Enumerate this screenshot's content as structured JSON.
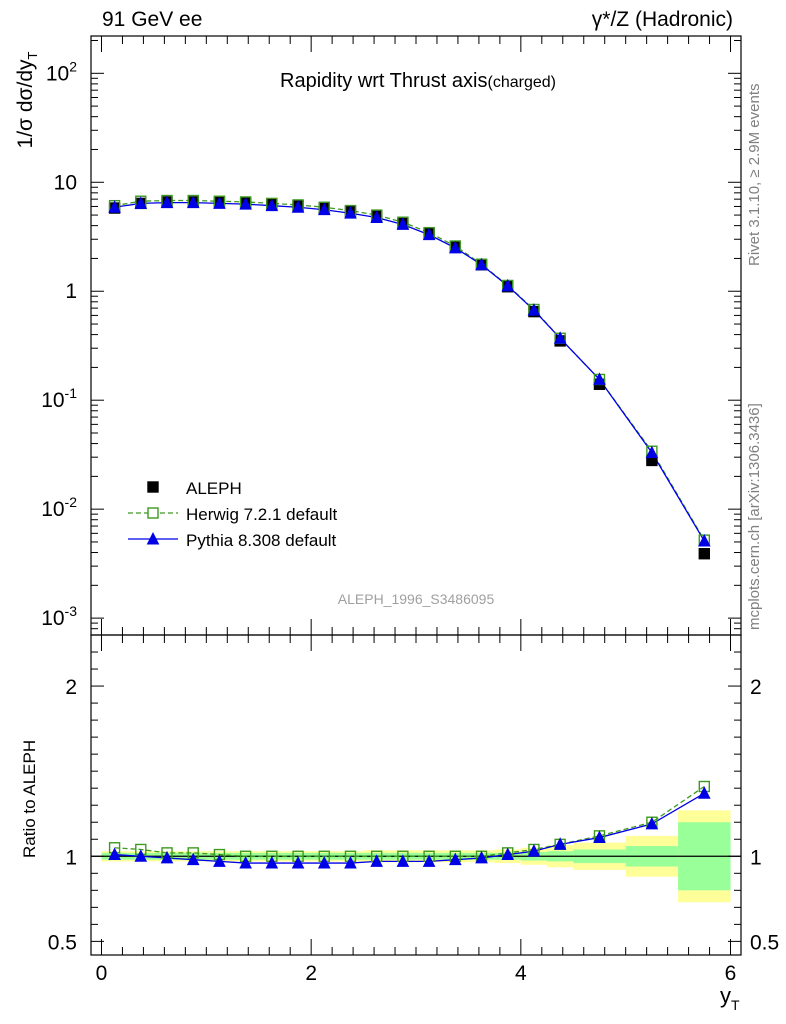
{
  "header": {
    "left": "91 GeV ee",
    "right": "γ*/Z (Hadronic)"
  },
  "side_text": {
    "rivet": "Rivet 3.1.10, ≥ 2.9M events",
    "mcplots": "mcplots.cern.ch [arXiv:1306.3436]"
  },
  "chart_data": [
    {
      "type": "scatter",
      "title": "Rapidity wrt Thrust axis",
      "title_suffix": "(charged)",
      "ylabel": "1/σ dσ/dy",
      "ylabel_sub": "T",
      "yscale": "log",
      "ylim": [
        0.0007,
        220
      ],
      "xlim": [
        -0.1,
        6.1
      ],
      "watermark": "ALEPH_1996_S3486095",
      "y_ticks": [
        {
          "base": "10",
          "exp": "-3"
        },
        {
          "base": "10",
          "exp": "-2"
        },
        {
          "base": "10",
          "exp": "-1"
        },
        {
          "base": "1",
          "exp": ""
        },
        {
          "base": "10",
          "exp": ""
        },
        {
          "base": "10",
          "exp": "2"
        }
      ],
      "legend_position": "lower-left",
      "x": [
        0.125,
        0.375,
        0.625,
        0.875,
        1.125,
        1.375,
        1.625,
        1.875,
        2.125,
        2.375,
        2.625,
        2.875,
        3.125,
        3.375,
        3.625,
        3.875,
        4.125,
        4.375,
        4.75,
        5.25,
        5.75
      ],
      "series": [
        {
          "name": "ALEPH",
          "style": "black-square",
          "values": [
            5.8,
            6.4,
            6.6,
            6.6,
            6.6,
            6.5,
            6.3,
            6.1,
            5.8,
            5.4,
            4.9,
            4.2,
            3.4,
            2.55,
            1.75,
            1.1,
            0.65,
            0.35,
            0.14,
            0.028,
            0.0039
          ]
        },
        {
          "name": "Herwig 7.2.1 default",
          "style": "green-dashed-open-square",
          "values": [
            6.1,
            6.7,
            6.8,
            6.8,
            6.7,
            6.6,
            6.4,
            6.2,
            5.9,
            5.5,
            5.0,
            4.3,
            3.45,
            2.6,
            1.77,
            1.13,
            0.68,
            0.37,
            0.155,
            0.034,
            0.0052
          ]
        },
        {
          "name": "Pythia 8.308 default",
          "style": "blue-solid-triangle",
          "values": [
            5.9,
            6.4,
            6.5,
            6.5,
            6.4,
            6.3,
            6.1,
            5.9,
            5.6,
            5.2,
            4.75,
            4.1,
            3.3,
            2.5,
            1.75,
            1.12,
            0.67,
            0.37,
            0.155,
            0.033,
            0.0051
          ]
        }
      ]
    },
    {
      "type": "scatter",
      "ylabel": "Ratio to ALEPH",
      "xlabel": "y",
      "xlabel_sub": "T",
      "ylim": [
        0.42,
        2.3
      ],
      "xlim": [
        -0.1,
        6.1
      ],
      "y_ticks": [
        "0.5",
        "1",
        "2"
      ],
      "x_ticks": [
        "0",
        "2",
        "4",
        "6"
      ],
      "bins": [
        [
          0,
          0.25
        ],
        [
          0.25,
          0.5
        ],
        [
          0.5,
          0.75
        ],
        [
          0.75,
          1
        ],
        [
          1,
          1.25
        ],
        [
          1.25,
          1.5
        ],
        [
          1.5,
          1.75
        ],
        [
          1.75,
          2
        ],
        [
          2,
          2.25
        ],
        [
          2.25,
          2.5
        ],
        [
          2.5,
          2.75
        ],
        [
          2.75,
          3
        ],
        [
          3,
          3.25
        ],
        [
          3.25,
          3.5
        ],
        [
          3.5,
          3.75
        ],
        [
          3.75,
          4
        ],
        [
          4,
          4.25
        ],
        [
          4.25,
          4.5
        ],
        [
          4.5,
          5
        ],
        [
          5,
          5.5
        ],
        [
          5.5,
          6
        ]
      ],
      "band_green": [
        0.02,
        0.02,
        0.02,
        0.02,
        0.02,
        0.02,
        0.02,
        0.02,
        0.02,
        0.02,
        0.02,
        0.02,
        0.02,
        0.02,
        0.02,
        0.02,
        0.025,
        0.03,
        0.04,
        0.06,
        0.2
      ],
      "band_yellow": [
        0.03,
        0.03,
        0.03,
        0.03,
        0.03,
        0.03,
        0.03,
        0.03,
        0.03,
        0.03,
        0.035,
        0.035,
        0.035,
        0.035,
        0.035,
        0.04,
        0.05,
        0.065,
        0.08,
        0.12,
        0.27
      ],
      "x": [
        0.125,
        0.375,
        0.625,
        0.875,
        1.125,
        1.375,
        1.625,
        1.875,
        2.125,
        2.375,
        2.625,
        2.875,
        3.125,
        3.375,
        3.625,
        3.875,
        4.125,
        4.375,
        4.75,
        5.25,
        5.75
      ],
      "series": [
        {
          "name": "Herwig 7.2.1 default",
          "style": "green-dashed-open-square",
          "values": [
            1.05,
            1.04,
            1.02,
            1.02,
            1.01,
            1.0,
            1.0,
            1.0,
            1.0,
            1.0,
            1.0,
            1.0,
            1.0,
            1.0,
            1.0,
            1.02,
            1.04,
            1.07,
            1.12,
            1.2,
            1.41
          ]
        },
        {
          "name": "Pythia 8.308 default",
          "style": "blue-solid-triangle",
          "values": [
            1.01,
            1.0,
            0.99,
            0.98,
            0.97,
            0.96,
            0.96,
            0.96,
            0.96,
            0.96,
            0.97,
            0.97,
            0.97,
            0.98,
            0.99,
            1.01,
            1.03,
            1.07,
            1.11,
            1.19,
            1.37
          ]
        }
      ]
    }
  ],
  "colors": {
    "aleph": "#000000",
    "herwig": "#3d9a1f",
    "pythia": "#0000e6",
    "band_green": "#99ff99",
    "band_yellow": "#ffff99",
    "side_text": "#808080"
  }
}
